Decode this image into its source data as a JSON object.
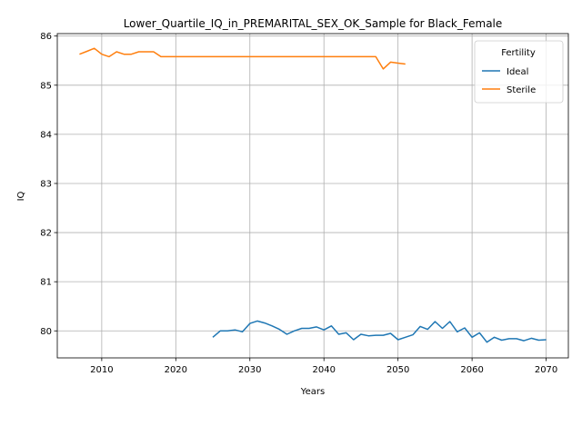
{
  "chart_data": {
    "type": "line",
    "title": "Lower_Quartile_IQ_in_PREMARITAL_SEX_OK_Sample for Black_Female",
    "xlabel": "Years",
    "ylabel": "IQ",
    "xlim": [
      2004,
      2073
    ],
    "ylim": [
      79.45,
      86.05
    ],
    "xticks": [
      2010,
      2020,
      2030,
      2040,
      2050,
      2060,
      2070
    ],
    "yticks": [
      80,
      81,
      82,
      83,
      84,
      85,
      86
    ],
    "grid": true,
    "legend": {
      "title": "Fertility",
      "placement": "upper-right",
      "entries": [
        "Ideal",
        "Sterile"
      ]
    },
    "series": [
      {
        "name": "Ideal",
        "color": "#1f77b4",
        "x": [
          2025,
          2026,
          2027,
          2028,
          2029,
          2030,
          2031,
          2032,
          2033,
          2034,
          2035,
          2036,
          2037,
          2038,
          2039,
          2040,
          2041,
          2042,
          2043,
          2044,
          2045,
          2046,
          2047,
          2048,
          2049,
          2050,
          2051,
          2052,
          2053,
          2054,
          2055,
          2056,
          2057,
          2058,
          2059,
          2060,
          2061,
          2062,
          2063,
          2064,
          2065,
          2066,
          2067,
          2068,
          2069,
          2070
        ],
        "y": [
          79.87,
          80.0,
          80.0,
          80.02,
          79.98,
          80.15,
          80.2,
          80.16,
          80.1,
          80.03,
          79.93,
          80.0,
          80.05,
          80.05,
          80.08,
          80.02,
          80.1,
          79.93,
          79.96,
          79.82,
          79.93,
          79.9,
          79.91,
          79.91,
          79.95,
          79.82,
          79.87,
          79.92,
          80.09,
          80.03,
          80.19,
          80.05,
          80.19,
          79.98,
          80.06,
          79.87,
          79.96,
          79.77,
          79.87,
          79.81,
          79.84,
          79.84,
          79.8,
          79.85,
          79.81,
          79.82
        ]
      },
      {
        "name": "Sterile",
        "color": "#ff7f0e",
        "x": [
          2007,
          2008,
          2009,
          2010,
          2011,
          2012,
          2013,
          2014,
          2015,
          2016,
          2017,
          2018,
          2019,
          2020,
          2021,
          2022,
          2023,
          2024,
          2025,
          2026,
          2027,
          2028,
          2029,
          2030,
          2031,
          2032,
          2033,
          2034,
          2035,
          2036,
          2037,
          2038,
          2039,
          2040,
          2041,
          2042,
          2043,
          2044,
          2045,
          2046,
          2047,
          2048,
          2049,
          2050,
          2051
        ],
        "y": [
          85.63,
          85.69,
          85.75,
          85.63,
          85.58,
          85.68,
          85.63,
          85.63,
          85.68,
          85.68,
          85.68,
          85.58,
          85.58,
          85.58,
          85.58,
          85.58,
          85.58,
          85.58,
          85.58,
          85.58,
          85.58,
          85.58,
          85.58,
          85.58,
          85.58,
          85.58,
          85.58,
          85.58,
          85.58,
          85.58,
          85.58,
          85.58,
          85.58,
          85.58,
          85.58,
          85.58,
          85.58,
          85.58,
          85.58,
          85.58,
          85.58,
          85.33,
          85.47,
          85.45,
          85.43
        ]
      }
    ]
  }
}
